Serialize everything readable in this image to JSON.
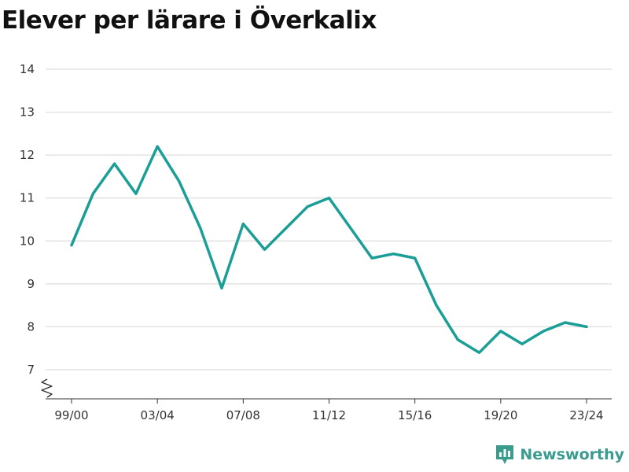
{
  "chart_data": {
    "type": "line",
    "title": "Elever per lärare i Överkalix",
    "xlabel": "",
    "ylabel": "",
    "ylim": [
      6.35,
      14.2
    ],
    "yticks": [
      7,
      8,
      9,
      10,
      11,
      12,
      13,
      14
    ],
    "x": [
      "99/00",
      "00/01",
      "01/02",
      "02/03",
      "03/04",
      "04/05",
      "05/06",
      "06/07",
      "07/08",
      "08/09",
      "09/10",
      "10/11",
      "11/12",
      "12/13",
      "13/14",
      "14/15",
      "15/16",
      "16/17",
      "17/18",
      "18/19",
      "19/20",
      "20/21",
      "21/22",
      "22/23",
      "23/24"
    ],
    "xticks_shown": [
      "99/00",
      "03/04",
      "07/08",
      "11/12",
      "15/16",
      "19/20",
      "23/24"
    ],
    "series": [
      {
        "values": [
          9.9,
          11.1,
          11.8,
          11.1,
          12.2,
          11.4,
          10.3,
          8.9,
          10.4,
          9.8,
          10.3,
          10.8,
          11.0,
          10.3,
          9.6,
          9.7,
          9.6,
          8.5,
          7.7,
          7.4,
          7.9,
          7.6,
          7.9,
          8.1,
          8.0
        ]
      }
    ],
    "colors": {
      "line": "#1a9e96",
      "grid": "#dddddd",
      "axis": "#333333"
    },
    "axis_break": true,
    "grid": true
  },
  "brand": {
    "name": "Newsworthy",
    "logo_icon": "newsworthy-bar-chart-icon"
  }
}
